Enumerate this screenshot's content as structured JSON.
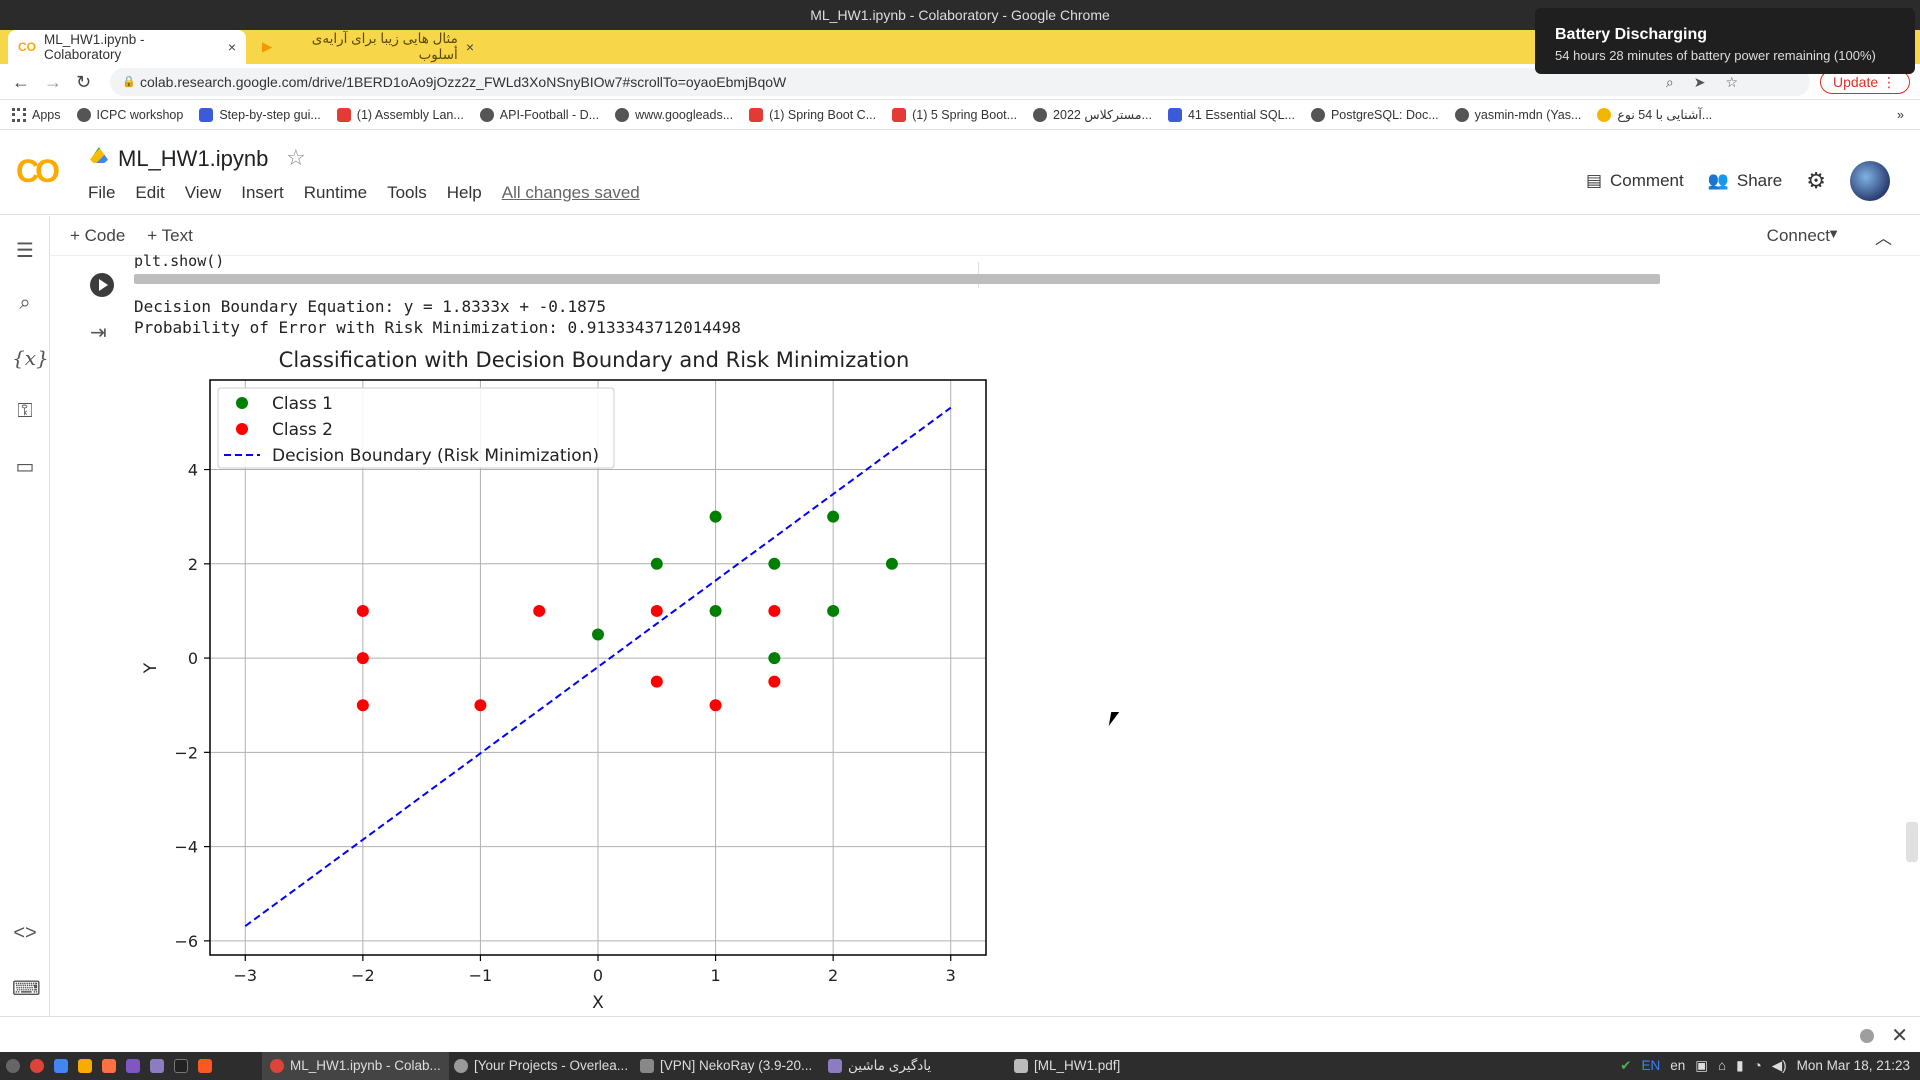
{
  "window": {
    "title": "ML_HW1.ipynb - Colaboratory - Google Chrome"
  },
  "tabs": [
    {
      "label": "ML_HW1.ipynb - Colaboratory",
      "close": "×"
    },
    {
      "label": "مثال هایی زیبا برای آرایه‌ی أسلوب",
      "close": "×"
    }
  ],
  "newtab": "+",
  "address": {
    "url": "colab.research.google.com/drive/1BERD1oAo9jOzz2z_FWLd3XoNSnyBIOw7#scrollTo=oyaoEbmjBqoW"
  },
  "update_label": "Update",
  "bookmarks": [
    "Apps",
    "ICPC workshop",
    "Step-by-step gui...",
    "(1) Assembly Lan...",
    "API-Football - D...",
    "www.googleads...",
    "(1) Spring Boot C...",
    "(1) 5 Spring Boot...",
    "مسترکلاس 2022...",
    "41 Essential SQL...",
    "PostgreSQL: Doc...",
    "yasmin-mdn (Yas...",
    "آشنایی با 54 نوع..."
  ],
  "notification": {
    "title": "Battery Discharging",
    "body": "54 hours 28 minutes of battery power remaining (100%)"
  },
  "notebook": {
    "title": "ML_HW1.ipynb",
    "menu": [
      "File",
      "Edit",
      "View",
      "Insert",
      "Runtime",
      "Tools",
      "Help"
    ],
    "saved": "All changes saved",
    "comment": "Comment",
    "share": "Share",
    "add_code": "+ Code",
    "add_text": "+ Text",
    "connect": "Connect"
  },
  "cell": {
    "code_fragment": "plt.show()",
    "output_line1": "Decision Boundary Equation: y = 1.8333x + -0.1875",
    "output_line2": "Probability of Error with Risk Minimization: 0.9133343712014498"
  },
  "chart_data": {
    "type": "scatter",
    "title": "Classification with Decision Boundary and Risk Minimization",
    "xlabel": "X",
    "ylabel": "Y",
    "xlim": [
      -3.3,
      3.3
    ],
    "ylim": [
      -6.3,
      5.9
    ],
    "xticks": [
      -3,
      -2,
      -1,
      0,
      1,
      2,
      3
    ],
    "yticks": [
      -6,
      -4,
      -2,
      0,
      2,
      4
    ],
    "xtick_labels": [
      "−3",
      "−2",
      "−1",
      "0",
      "1",
      "2",
      "3"
    ],
    "ytick_labels": [
      "−6",
      "−4",
      "−2",
      "0",
      "2",
      "4"
    ],
    "grid": true,
    "legend_position": "top-left",
    "series": [
      {
        "name": "Class 1",
        "color": "#008000",
        "points": [
          [
            0,
            0.5
          ],
          [
            0.5,
            2
          ],
          [
            1,
            3
          ],
          [
            1,
            1
          ],
          [
            1.5,
            2
          ],
          [
            1.5,
            0
          ],
          [
            2,
            3
          ],
          [
            2,
            1
          ],
          [
            2.5,
            2
          ]
        ]
      },
      {
        "name": "Class 2",
        "color": "#ff0000",
        "points": [
          [
            -2,
            1
          ],
          [
            -2,
            0
          ],
          [
            -2,
            -1
          ],
          [
            -1,
            -1
          ],
          [
            -0.5,
            1
          ],
          [
            0.5,
            1
          ],
          [
            0.5,
            -0.5
          ],
          [
            1,
            -1
          ],
          [
            1.5,
            1
          ],
          [
            1.5,
            -0.5
          ]
        ]
      }
    ],
    "line": {
      "name": "Decision Boundary (Risk Minimization)",
      "color": "#0000ff",
      "slope": 1.8333,
      "intercept": -0.1875,
      "x_range": [
        -3,
        3
      ]
    }
  },
  "taskbar": {
    "items": [
      "ML_HW1.ipynb - Colab...",
      "[Your Projects - Overlea...",
      "[VPN] NekoRay (3.9-20...",
      "یادگیری ماشین",
      "[ML_HW1.pdf]"
    ],
    "lang1": "EN",
    "lang2": "en",
    "clock": "Mon Mar 18, 21:23"
  }
}
